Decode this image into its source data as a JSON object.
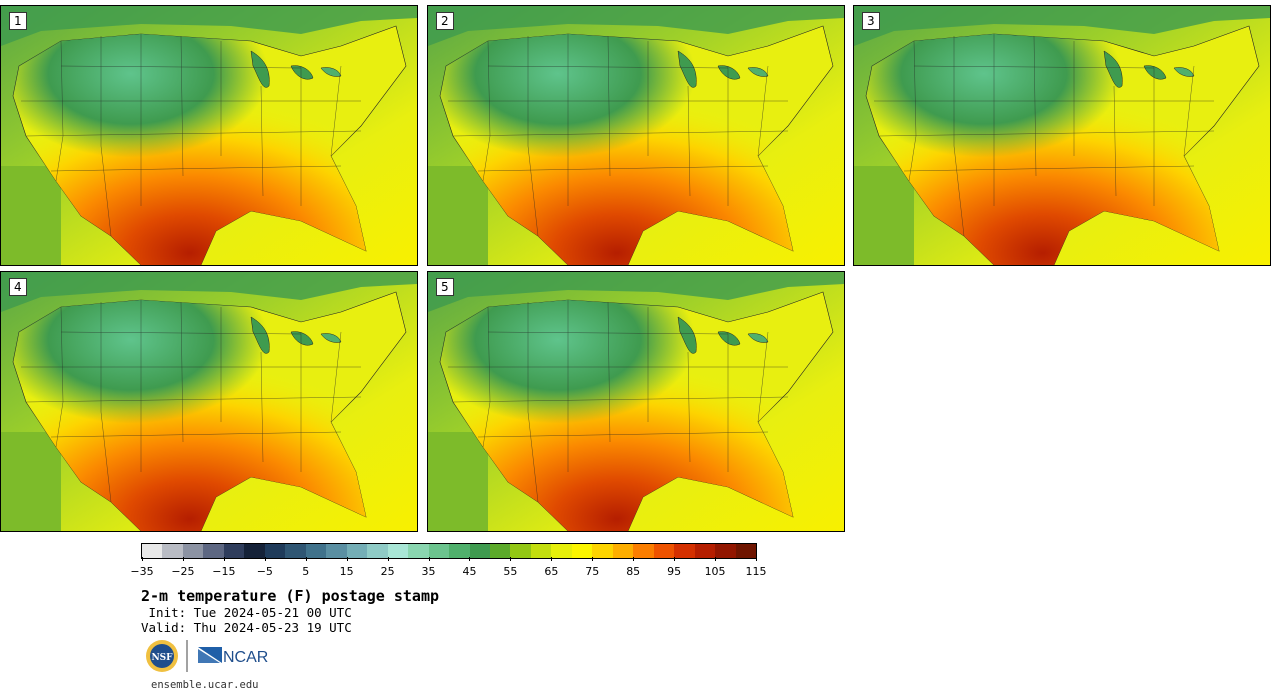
{
  "panels": [
    {
      "label": "1"
    },
    {
      "label": "2"
    },
    {
      "label": "3"
    },
    {
      "label": "4"
    },
    {
      "label": "5"
    }
  ],
  "colorbar": {
    "colors": [
      "#e8e8e8",
      "#b9bcc4",
      "#8c93a3",
      "#5d6782",
      "#2f3d5c",
      "#152238",
      "#1f3b5a",
      "#2f5673",
      "#40728b",
      "#5a8fa2",
      "#74aeb6",
      "#8fcbc6",
      "#a9e6d6",
      "#8ad6b0",
      "#6cc48e",
      "#50b06c",
      "#3f9b4f",
      "#5caa2a",
      "#93c714",
      "#c3de0e",
      "#e6ef0a",
      "#fbf500",
      "#fdd400",
      "#fdae00",
      "#fb7e00",
      "#ee5300",
      "#d43000",
      "#b51e00",
      "#921600",
      "#6f1500"
    ],
    "tick_labels": [
      "−35",
      "−25",
      "−15",
      "−5",
      "5",
      "15",
      "25",
      "35",
      "45",
      "55",
      "65",
      "75",
      "85",
      "95",
      "105",
      "115"
    ]
  },
  "title": "2-m temperature (F) postage stamp",
  "init_line": " Init: Tue 2024-05-21 00 UTC",
  "valid_line": "Valid: Thu 2024-05-23 19 UTC",
  "logos": {
    "nsf": "NSF",
    "ncar": "NCAR"
  },
  "credit": "ensemble.ucar.edu"
}
